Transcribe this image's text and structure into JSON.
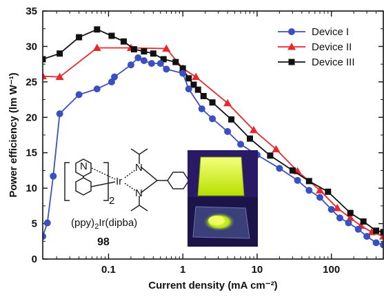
{
  "chart_data": {
    "type": "line",
    "title": "",
    "xlabel": "Current density (mA cm⁻²)",
    "ylabel": "Power efficiency (lm W⁻¹)",
    "x_scale": "log",
    "xlim": [
      0.013,
      500
    ],
    "ylim": [
      0,
      35
    ],
    "x_ticks": [
      0.1,
      1,
      10,
      100
    ],
    "x_tick_labels": [
      "0.1",
      "1",
      "10",
      "100"
    ],
    "y_ticks": [
      0,
      5,
      10,
      15,
      20,
      25,
      30,
      35
    ],
    "y_tick_labels": [
      "0",
      "5",
      "10",
      "15",
      "20",
      "25",
      "30",
      "35"
    ],
    "legend_position": "top-right",
    "series": [
      {
        "name": "Device I",
        "color": "#3a4fc0",
        "marker": "circle",
        "points": [
          [
            0.013,
            3.2
          ],
          [
            0.015,
            5.1
          ],
          [
            0.018,
            11.7
          ],
          [
            0.022,
            20.5
          ],
          [
            0.04,
            23.2
          ],
          [
            0.07,
            24.0
          ],
          [
            0.11,
            25.0
          ],
          [
            0.12,
            25.7
          ],
          [
            0.2,
            27.4
          ],
          [
            0.25,
            28.4
          ],
          [
            0.3,
            28.0
          ],
          [
            0.38,
            27.6
          ],
          [
            0.5,
            27.6
          ],
          [
            0.6,
            26.8
          ],
          [
            1.0,
            26.2
          ],
          [
            1.2,
            24.0
          ],
          [
            1.8,
            21.2
          ],
          [
            2.5,
            19.8
          ],
          [
            4.0,
            18.0
          ],
          [
            6.0,
            16.2
          ],
          [
            10.0,
            14.7
          ],
          [
            20.0,
            12.8
          ],
          [
            35.0,
            11.1
          ],
          [
            50.0,
            9.7
          ],
          [
            70.0,
            8.7
          ],
          [
            100.0,
            7.0
          ],
          [
            130.0,
            5.8
          ],
          [
            170.0,
            5.1
          ],
          [
            230.0,
            4.2
          ],
          [
            300.0,
            3.2
          ],
          [
            400.0,
            2.3
          ],
          [
            500.0,
            2.0
          ]
        ]
      },
      {
        "name": "Device II",
        "color": "#e8282a",
        "marker": "triangle",
        "points": [
          [
            0.013,
            25.8
          ],
          [
            0.022,
            25.7
          ],
          [
            0.07,
            29.8
          ],
          [
            0.2,
            29.8
          ],
          [
            0.6,
            29.7
          ],
          [
            1.0,
            26.9
          ],
          [
            1.5,
            25.7
          ],
          [
            4.0,
            22.0
          ],
          [
            9.0,
            18.2
          ],
          [
            18.0,
            15.5
          ],
          [
            35.0,
            12.4
          ],
          [
            70.0,
            9.7
          ],
          [
            120.0,
            7.2
          ],
          [
            180.0,
            5.8
          ],
          [
            250.0,
            4.7
          ],
          [
            350.0,
            3.8
          ],
          [
            500.0,
            3.2
          ]
        ]
      },
      {
        "name": "Device III",
        "color": "#111111",
        "marker": "square",
        "points": [
          [
            0.013,
            28.2
          ],
          [
            0.022,
            29.0
          ],
          [
            0.04,
            31.3
          ],
          [
            0.07,
            32.4
          ],
          [
            0.11,
            31.5
          ],
          [
            0.16,
            30.7
          ],
          [
            0.22,
            29.6
          ],
          [
            0.3,
            29.3
          ],
          [
            0.4,
            29.0
          ],
          [
            0.55,
            28.2
          ],
          [
            0.8,
            27.8
          ],
          [
            1.0,
            26.9
          ],
          [
            1.2,
            25.5
          ],
          [
            1.4,
            24.6
          ],
          [
            1.6,
            23.9
          ],
          [
            1.9,
            23.0
          ],
          [
            2.5,
            22.1
          ],
          [
            4.5,
            19.7
          ],
          [
            8.0,
            17.0
          ],
          [
            15.0,
            14.6
          ],
          [
            30.0,
            12.5
          ],
          [
            50.0,
            11.0
          ],
          [
            90.0,
            9.5
          ],
          [
            180.0,
            6.5
          ],
          [
            270.0,
            5.3
          ],
          [
            400.0,
            4.0
          ],
          [
            500.0,
            3.8
          ]
        ]
      }
    ]
  },
  "inset": {
    "complex_label_prefix": "(ppy)",
    "complex_label_sub": "2",
    "complex_label_suffix": "Ir(dipba)",
    "compound_number": "98",
    "atom_ir": "Ir",
    "atom_n1": "N",
    "atom_n2": "N",
    "atom_n3": "N",
    "bracket_subscript": "2",
    "photo_background": "#2a1a66",
    "photo_film_color": "#d8ff3a"
  }
}
